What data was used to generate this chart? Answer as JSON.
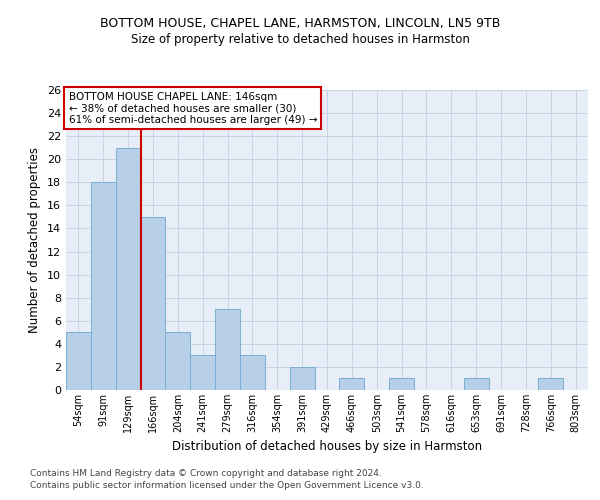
{
  "title": "BOTTOM HOUSE, CHAPEL LANE, HARMSTON, LINCOLN, LN5 9TB",
  "subtitle": "Size of property relative to detached houses in Harmston",
  "xlabel": "Distribution of detached houses by size in Harmston",
  "ylabel": "Number of detached properties",
  "bar_color": "#b8cfe8",
  "bar_edge_color": "#7aaed4",
  "vline_color": "#cc0000",
  "annotation_text": "BOTTOM HOUSE CHAPEL LANE: 146sqm\n← 38% of detached houses are smaller (30)\n61% of semi-detached houses are larger (49) →",
  "annotation_box_color": "white",
  "annotation_box_edge_color": "#cc0000",
  "ylim": [
    0,
    26
  ],
  "yticks": [
    0,
    2,
    4,
    6,
    8,
    10,
    12,
    14,
    16,
    18,
    20,
    22,
    24,
    26
  ],
  "grid_color": "#c8d4e4",
  "bg_color": "#e8eef8",
  "footer1": "Contains HM Land Registry data © Crown copyright and database right 2024.",
  "footer2": "Contains public sector information licensed under the Open Government Licence v3.0.",
  "categories": [
    "54sqm",
    "91sqm",
    "129sqm",
    "166sqm",
    "204sqm",
    "241sqm",
    "279sqm",
    "316sqm",
    "354sqm",
    "391sqm",
    "429sqm",
    "466sqm",
    "503sqm",
    "541sqm",
    "578sqm",
    "616sqm",
    "653sqm",
    "691sqm",
    "728sqm",
    "766sqm",
    "803sqm"
  ],
  "bar_counts": [
    5,
    18,
    21,
    15,
    5,
    3,
    7,
    3,
    0,
    2,
    0,
    1,
    0,
    1,
    0,
    0,
    1,
    0,
    0,
    1,
    0
  ],
  "vline_index": 2.5
}
